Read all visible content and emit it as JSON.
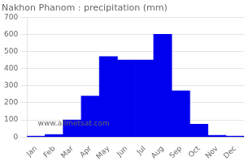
{
  "chart_data": {
    "type": "bar",
    "title": "Nakhon Phanom : precipitation (mm)",
    "categories": [
      "Jan",
      "Feb",
      "Mar",
      "Apr",
      "May",
      "Jun",
      "Jul",
      "Aug",
      "Sep",
      "Oct",
      "Nov",
      "Dec"
    ],
    "values": [
      5,
      15,
      100,
      240,
      470,
      450,
      450,
      600,
      270,
      75,
      10,
      5
    ],
    "color": "#0000EE",
    "ylim": [
      0,
      700
    ],
    "yticks": [
      0,
      100,
      200,
      300,
      400,
      500,
      600,
      700
    ],
    "grid": true,
    "annotations": [
      "www.allmetsat.com"
    ]
  }
}
